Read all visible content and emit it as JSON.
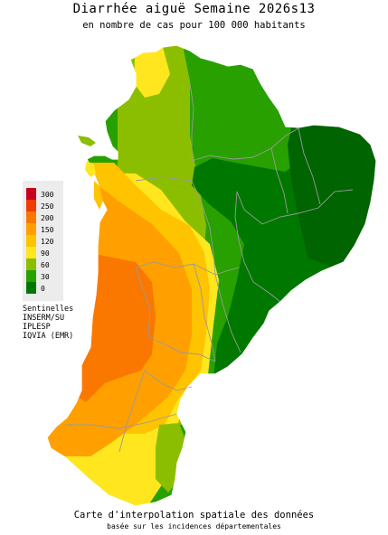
{
  "title": "Diarrhée aiguë Semaine 2026s13",
  "subtitle": "en nombre de cas pour 100 000 habitants",
  "legend": {
    "levels": [
      {
        "label": "300",
        "color": "#c8001e"
      },
      {
        "label": "250",
        "color": "#f03c00"
      },
      {
        "label": "200",
        "color": "#fa7800"
      },
      {
        "label": "150",
        "color": "#ffa000"
      },
      {
        "label": "120",
        "color": "#ffc300"
      },
      {
        "label": "90",
        "color": "#ffe61e"
      },
      {
        "label": "60",
        "color": "#8cbe00"
      },
      {
        "label": "30",
        "color": "#28a000"
      },
      {
        "label": "0",
        "color": "#007800"
      }
    ]
  },
  "sources": [
    "Sentinelles",
    "INSERM/SU",
    "IPLESP",
    "IQVIA (EMR)"
  ],
  "footer": {
    "line1": "Carte d'interpolation spatiale des données",
    "line2": "basée sur les incidences départementales"
  }
}
